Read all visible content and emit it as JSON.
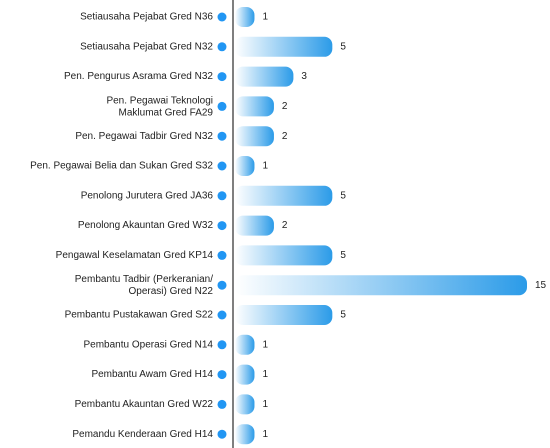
{
  "chart_data": {
    "type": "bar",
    "orientation": "horizontal",
    "categories": [
      "Setiausaha Pejabat Gred N36",
      "Setiausaha Pejabat Gred N32",
      "Pen. Pengurus Asrama Gred N32",
      "Pen. Pegawai Teknologi\nMaklumat Gred FA29",
      "Pen. Pegawai Tadbir Gred N32",
      "Pen. Pegawai Belia dan Sukan Gred S32",
      "Penolong Jurutera Gred JA36",
      "Penolong Akauntan Gred W32",
      "Pengawal Keselamatan Gred KP14",
      "Pembantu Tadbir (Perkeranian/\nOperasi) Gred N22",
      "Pembantu Pustakawan Gred S22",
      "Pembantu Operasi Gred N14",
      "Pembantu Awam Gred H14",
      "Pembantu Akauntan Gred W22",
      "Pemandu Kenderaan Gred H14"
    ],
    "values": [
      1,
      5,
      3,
      2,
      2,
      1,
      5,
      2,
      5,
      15,
      5,
      1,
      1,
      1,
      1
    ],
    "color": "#2b9be8",
    "xlim": [
      0,
      15
    ]
  }
}
